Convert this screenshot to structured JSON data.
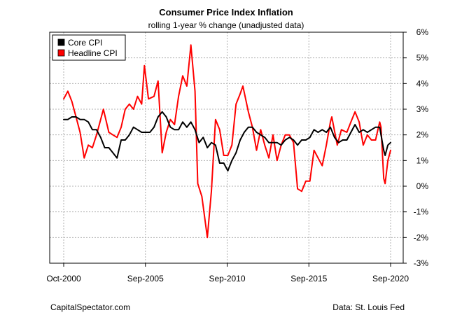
{
  "chart_data": {
    "type": "line",
    "title": "Consumer Price Index Inflation",
    "subtitle": "rolling 1-year % change (unadjusted data)",
    "x_ticks": [
      "Oct-2000",
      "Sep-2005",
      "Sep-2010",
      "Sep-2015",
      "Sep-2020"
    ],
    "x_range": [
      "2000-10",
      "2020-09"
    ],
    "y_ticks": [
      "-3%",
      "-2%",
      "-1%",
      "0%",
      "1%",
      "2%",
      "3%",
      "4%",
      "5%",
      "6%"
    ],
    "ylim": [
      -3,
      6
    ],
    "y_axis_side": "right",
    "grid": true,
    "legend_position": "top-left",
    "series": [
      {
        "name": "Core CPI",
        "color": "#000000",
        "points": [
          [
            "2000-10",
            2.6
          ],
          [
            "2001-01",
            2.6
          ],
          [
            "2001-04",
            2.7
          ],
          [
            "2001-07",
            2.7
          ],
          [
            "2001-10",
            2.6
          ],
          [
            "2002-01",
            2.6
          ],
          [
            "2002-04",
            2.5
          ],
          [
            "2002-07",
            2.2
          ],
          [
            "2002-10",
            2.2
          ],
          [
            "2003-01",
            1.9
          ],
          [
            "2003-04",
            1.5
          ],
          [
            "2003-07",
            1.5
          ],
          [
            "2003-10",
            1.3
          ],
          [
            "2004-01",
            1.1
          ],
          [
            "2004-04",
            1.8
          ],
          [
            "2004-07",
            1.8
          ],
          [
            "2004-10",
            2.0
          ],
          [
            "2005-01",
            2.3
          ],
          [
            "2005-04",
            2.2
          ],
          [
            "2005-07",
            2.1
          ],
          [
            "2005-10",
            2.1
          ],
          [
            "2006-01",
            2.1
          ],
          [
            "2006-04",
            2.3
          ],
          [
            "2006-07",
            2.7
          ],
          [
            "2006-10",
            2.9
          ],
          [
            "2007-01",
            2.7
          ],
          [
            "2007-04",
            2.3
          ],
          [
            "2007-07",
            2.2
          ],
          [
            "2007-10",
            2.2
          ],
          [
            "2008-01",
            2.5
          ],
          [
            "2008-04",
            2.3
          ],
          [
            "2008-07",
            2.5
          ],
          [
            "2008-10",
            2.2
          ],
          [
            "2009-01",
            1.7
          ],
          [
            "2009-04",
            1.9
          ],
          [
            "2009-07",
            1.5
          ],
          [
            "2009-10",
            1.7
          ],
          [
            "2010-01",
            1.6
          ],
          [
            "2010-04",
            0.9
          ],
          [
            "2010-07",
            0.9
          ],
          [
            "2010-10",
            0.6
          ],
          [
            "2011-01",
            1.0
          ],
          [
            "2011-04",
            1.3
          ],
          [
            "2011-07",
            1.8
          ],
          [
            "2011-10",
            2.1
          ],
          [
            "2012-01",
            2.3
          ],
          [
            "2012-04",
            2.3
          ],
          [
            "2012-07",
            2.1
          ],
          [
            "2012-10",
            2.0
          ],
          [
            "2013-01",
            1.9
          ],
          [
            "2013-04",
            1.7
          ],
          [
            "2013-07",
            1.7
          ],
          [
            "2013-10",
            1.7
          ],
          [
            "2014-01",
            1.6
          ],
          [
            "2014-04",
            1.8
          ],
          [
            "2014-07",
            1.9
          ],
          [
            "2014-10",
            1.8
          ],
          [
            "2015-01",
            1.6
          ],
          [
            "2015-04",
            1.8
          ],
          [
            "2015-07",
            1.8
          ],
          [
            "2015-10",
            1.9
          ],
          [
            "2016-01",
            2.2
          ],
          [
            "2016-04",
            2.1
          ],
          [
            "2016-07",
            2.2
          ],
          [
            "2016-10",
            2.1
          ],
          [
            "2017-01",
            2.3
          ],
          [
            "2017-04",
            1.9
          ],
          [
            "2017-07",
            1.7
          ],
          [
            "2017-10",
            1.8
          ],
          [
            "2018-01",
            1.8
          ],
          [
            "2018-04",
            2.1
          ],
          [
            "2018-07",
            2.4
          ],
          [
            "2018-10",
            2.1
          ],
          [
            "2019-01",
            2.2
          ],
          [
            "2019-04",
            2.1
          ],
          [
            "2019-07",
            2.2
          ],
          [
            "2019-10",
            2.3
          ],
          [
            "2020-01",
            2.3
          ],
          [
            "2020-04",
            1.4
          ],
          [
            "2020-05",
            1.2
          ],
          [
            "2020-07",
            1.6
          ],
          [
            "2020-09",
            1.7
          ]
        ]
      },
      {
        "name": "Headline CPI",
        "color": "#ff0000",
        "points": [
          [
            "2000-10",
            3.4
          ],
          [
            "2001-01",
            3.7
          ],
          [
            "2001-04",
            3.3
          ],
          [
            "2001-07",
            2.7
          ],
          [
            "2001-10",
            2.1
          ],
          [
            "2002-01",
            1.1
          ],
          [
            "2002-04",
            1.6
          ],
          [
            "2002-07",
            1.5
          ],
          [
            "2002-10",
            2.0
          ],
          [
            "2003-01",
            2.6
          ],
          [
            "2003-03",
            3.0
          ],
          [
            "2003-07",
            2.1
          ],
          [
            "2003-10",
            2.0
          ],
          [
            "2004-01",
            1.9
          ],
          [
            "2004-04",
            2.3
          ],
          [
            "2004-07",
            3.0
          ],
          [
            "2004-10",
            3.2
          ],
          [
            "2005-01",
            3.0
          ],
          [
            "2005-04",
            3.5
          ],
          [
            "2005-07",
            3.2
          ],
          [
            "2005-09",
            4.7
          ],
          [
            "2005-12",
            3.4
          ],
          [
            "2006-04",
            3.5
          ],
          [
            "2006-07",
            4.1
          ],
          [
            "2006-10",
            1.3
          ],
          [
            "2007-01",
            2.1
          ],
          [
            "2007-04",
            2.6
          ],
          [
            "2007-07",
            2.4
          ],
          [
            "2007-10",
            3.5
          ],
          [
            "2008-01",
            4.3
          ],
          [
            "2008-04",
            3.9
          ],
          [
            "2008-07",
            5.5
          ],
          [
            "2008-10",
            3.7
          ],
          [
            "2008-12",
            0.1
          ],
          [
            "2009-03",
            -0.4
          ],
          [
            "2009-07",
            -2.0
          ],
          [
            "2009-10",
            -0.2
          ],
          [
            "2010-01",
            2.6
          ],
          [
            "2010-04",
            2.2
          ],
          [
            "2010-07",
            1.2
          ],
          [
            "2010-10",
            1.2
          ],
          [
            "2011-01",
            1.6
          ],
          [
            "2011-04",
            3.2
          ],
          [
            "2011-07",
            3.6
          ],
          [
            "2011-09",
            3.9
          ],
          [
            "2012-01",
            2.9
          ],
          [
            "2012-04",
            2.3
          ],
          [
            "2012-07",
            1.4
          ],
          [
            "2012-10",
            2.2
          ],
          [
            "2013-01",
            1.6
          ],
          [
            "2013-04",
            1.1
          ],
          [
            "2013-07",
            2.0
          ],
          [
            "2013-10",
            1.0
          ],
          [
            "2014-01",
            1.6
          ],
          [
            "2014-04",
            2.0
          ],
          [
            "2014-07",
            2.0
          ],
          [
            "2014-10",
            1.7
          ],
          [
            "2015-01",
            -0.1
          ],
          [
            "2015-04",
            -0.2
          ],
          [
            "2015-07",
            0.2
          ],
          [
            "2015-10",
            0.2
          ],
          [
            "2016-01",
            1.4
          ],
          [
            "2016-04",
            1.1
          ],
          [
            "2016-07",
            0.8
          ],
          [
            "2016-10",
            1.6
          ],
          [
            "2017-01",
            2.5
          ],
          [
            "2017-02",
            2.7
          ],
          [
            "2017-06",
            1.6
          ],
          [
            "2017-09",
            2.2
          ],
          [
            "2018-01",
            2.1
          ],
          [
            "2018-04",
            2.5
          ],
          [
            "2018-07",
            2.9
          ],
          [
            "2018-10",
            2.5
          ],
          [
            "2019-01",
            1.6
          ],
          [
            "2019-04",
            2.0
          ],
          [
            "2019-07",
            1.8
          ],
          [
            "2019-10",
            1.8
          ],
          [
            "2020-01",
            2.5
          ],
          [
            "2020-02",
            2.3
          ],
          [
            "2020-04",
            0.3
          ],
          [
            "2020-05",
            0.1
          ],
          [
            "2020-07",
            1.0
          ],
          [
            "2020-09",
            1.4
          ]
        ]
      }
    ]
  },
  "footer": {
    "source_left": "CapitalSpectator.com",
    "source_right": "Data: St. Louis Fed"
  }
}
